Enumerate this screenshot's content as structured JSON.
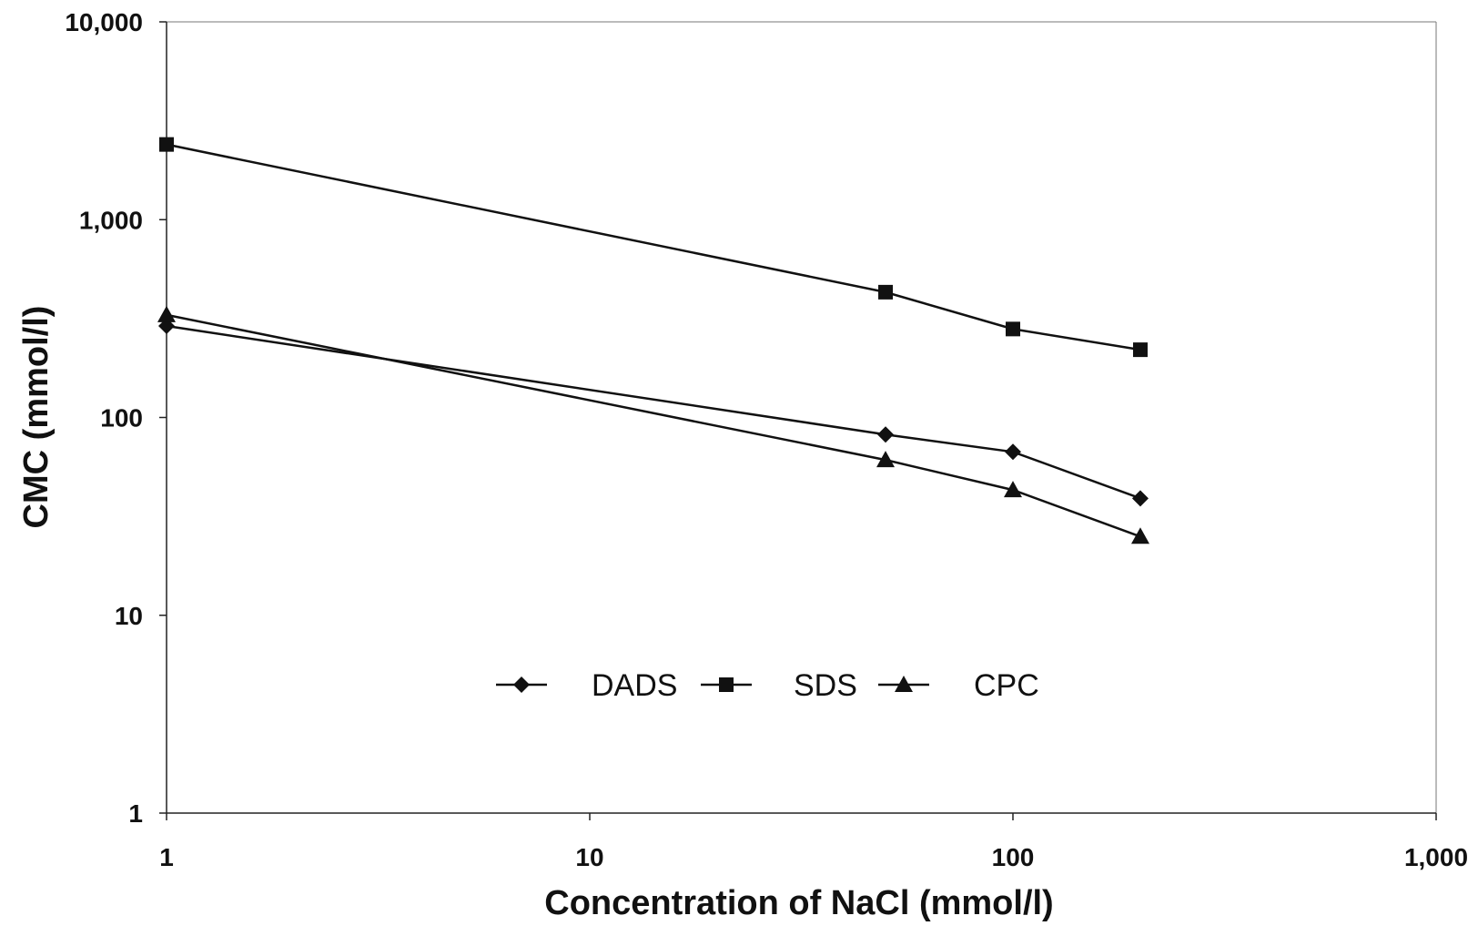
{
  "chart_data": {
    "type": "line",
    "xscale": "log",
    "yscale": "log",
    "xlabel": "Concentration of NaCl (mmol/l)",
    "ylabel": "CMC (mmol/l)",
    "xlim": [
      1,
      1000
    ],
    "ylim": [
      1,
      10000
    ],
    "x_ticks": [
      1,
      10,
      100,
      1000
    ],
    "x_tick_labels": [
      "1",
      "10",
      "100",
      "1,000"
    ],
    "y_ticks": [
      1,
      10,
      100,
      1000,
      10000
    ],
    "y_tick_labels": [
      "1",
      "10",
      "100",
      "1,000",
      "10,000"
    ],
    "grid": false,
    "legend_position": "center, inside plot area below the lines",
    "x": [
      1,
      50,
      100,
      200
    ],
    "series": [
      {
        "name": "DADS",
        "marker": "diamond",
        "values": [
          290,
          82,
          67,
          39
        ]
      },
      {
        "name": "SDS",
        "marker": "square",
        "values": [
          2400,
          430,
          280,
          220
        ]
      },
      {
        "name": "CPC",
        "marker": "triangle",
        "values": [
          330,
          61,
          43,
          25
        ]
      }
    ],
    "line_color": "#111111"
  }
}
